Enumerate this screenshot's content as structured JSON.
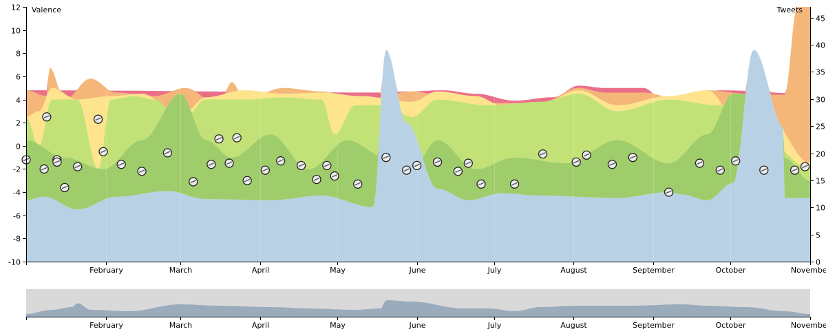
{
  "chart_data": {
    "type": "area",
    "left_axis_label": "Valence",
    "right_axis_label": "Tweets",
    "left_ticks": [
      12,
      10,
      8,
      6,
      4,
      2,
      0,
      -2,
      -4,
      -6,
      -8,
      -10
    ],
    "right_ticks": [
      "45",
      "40",
      "35",
      "30",
      "25",
      "20",
      "15",
      "10",
      "5",
      "0"
    ],
    "ylim_valence": [
      -10,
      12
    ],
    "ylim_tweets": [
      0,
      47
    ],
    "x_domain": [
      "2012-01-01",
      "2012-11-01"
    ],
    "months": [
      {
        "label": "February",
        "date": "2012-02-01"
      },
      {
        "label": "March",
        "date": "2012-03-01"
      },
      {
        "label": "April",
        "date": "2012-04-01"
      },
      {
        "label": "May",
        "date": "2012-05-01"
      },
      {
        "label": "June",
        "date": "2012-06-01"
      },
      {
        "label": "July",
        "date": "2012-07-01"
      },
      {
        "label": "August",
        "date": "2012-08-01"
      },
      {
        "label": "September",
        "date": "2012-09-01"
      },
      {
        "label": "October",
        "date": "2012-10-01"
      },
      {
        "label": "November",
        "date": "2012-11-01"
      }
    ],
    "bands": [
      {
        "color": "#b3cde3",
        "bottom": -10,
        "top": [
          [
            0,
            -4.7
          ],
          [
            7,
            -4.4
          ],
          [
            20,
            -5.5
          ],
          [
            35,
            -4.4
          ],
          [
            55,
            -3.9
          ],
          [
            70,
            -4.6
          ],
          [
            95,
            -4.7
          ],
          [
            115,
            -4.3
          ],
          [
            135,
            -5.3
          ],
          [
            140,
            8.3
          ],
          [
            148,
            2
          ],
          [
            160,
            -3.7
          ],
          [
            172,
            -4.7
          ],
          [
            185,
            -4.1
          ],
          [
            200,
            -4.3
          ],
          [
            230,
            -4.5
          ],
          [
            250,
            -4
          ],
          [
            255,
            -4.2
          ],
          [
            265,
            -4.7
          ],
          [
            275,
            -3.2
          ],
          [
            283,
            8.3
          ],
          [
            295,
            1.5
          ],
          [
            305,
            -4.5
          ],
          [
            295,
            -4.5
          ],
          [
            300,
            -4.5
          ]
        ]
      },
      {
        "color": "#98c95e",
        "bottom_from_prev": true,
        "top": [
          [
            0,
            0.5
          ],
          [
            15,
            -1
          ],
          [
            30,
            -2
          ],
          [
            45,
            0.5
          ],
          [
            60,
            4.5
          ],
          [
            70,
            0.5
          ],
          [
            80,
            -1
          ],
          [
            95,
            1
          ],
          [
            110,
            -2
          ],
          [
            125,
            0.5
          ],
          [
            140,
            -1
          ],
          [
            150,
            -2
          ],
          [
            160,
            0.5
          ],
          [
            175,
            -2
          ],
          [
            190,
            -1
          ],
          [
            210,
            -1.5
          ],
          [
            230,
            0.5
          ],
          [
            250,
            -1.5
          ],
          [
            265,
            1
          ],
          [
            275,
            4.5
          ],
          [
            285,
            4.5
          ],
          [
            295,
            -1
          ],
          [
            305,
            -3
          ]
        ]
      },
      {
        "color": "#bde06d",
        "bottom_from_prev": true,
        "top": [
          [
            0,
            2.5
          ],
          [
            5,
            0
          ],
          [
            10,
            4
          ],
          [
            20,
            4
          ],
          [
            28,
            -2
          ],
          [
            33,
            4
          ],
          [
            42,
            4.3
          ],
          [
            50,
            4
          ],
          [
            60,
            2
          ],
          [
            70,
            4
          ],
          [
            85,
            4
          ],
          [
            100,
            4.2
          ],
          [
            115,
            4
          ],
          [
            120,
            1
          ],
          [
            128,
            3.5
          ],
          [
            140,
            3.5
          ],
          [
            150,
            2.5
          ],
          [
            160,
            4
          ],
          [
            180,
            3.5
          ],
          [
            200,
            3.8
          ],
          [
            215,
            4.5
          ],
          [
            230,
            3
          ],
          [
            250,
            4
          ],
          [
            270,
            3.5
          ],
          [
            290,
            0
          ],
          [
            305,
            -2
          ]
        ]
      },
      {
        "color": "#fde283",
        "bottom_from_prev": true,
        "top": [
          [
            0,
            2.5
          ],
          [
            5,
            3
          ],
          [
            10,
            5
          ],
          [
            20,
            4
          ],
          [
            33,
            4.3
          ],
          [
            45,
            4.5
          ],
          [
            60,
            2.5
          ],
          [
            70,
            4.2
          ],
          [
            85,
            4.8
          ],
          [
            100,
            4.5
          ],
          [
            115,
            4.6
          ],
          [
            130,
            4.3
          ],
          [
            150,
            3.8
          ],
          [
            160,
            4.7
          ],
          [
            175,
            4.3
          ],
          [
            185,
            3.5
          ],
          [
            200,
            3.6
          ],
          [
            215,
            4.8
          ],
          [
            230,
            3.5
          ],
          [
            250,
            4.3
          ],
          [
            265,
            4.8
          ],
          [
            280,
            0.8
          ],
          [
            290,
            2
          ],
          [
            305,
            -1.5
          ]
        ]
      },
      {
        "color": "#f4b06f",
        "bottom_from_prev": true,
        "top": [
          [
            0,
            4.8
          ],
          [
            8,
            4.3
          ],
          [
            9,
            6.8
          ],
          [
            15,
            4
          ],
          [
            25,
            5.8
          ],
          [
            35,
            4.6
          ],
          [
            50,
            4.3
          ],
          [
            62,
            5
          ],
          [
            75,
            3.5
          ],
          [
            80,
            5.5
          ],
          [
            85,
            4
          ],
          [
            100,
            5
          ],
          [
            115,
            4.7
          ],
          [
            125,
            4.3
          ],
          [
            135,
            4.1
          ],
          [
            150,
            4.7
          ],
          [
            165,
            4.2
          ],
          [
            180,
            3.7
          ],
          [
            200,
            3.7
          ],
          [
            215,
            5
          ],
          [
            225,
            4.6
          ],
          [
            240,
            4.6
          ],
          [
            255,
            4
          ],
          [
            265,
            4.8
          ],
          [
            280,
            4.5
          ],
          [
            295,
            4.4
          ],
          [
            300,
            12
          ],
          [
            305,
            12
          ]
        ]
      },
      {
        "color": "#e8637e",
        "bottom_from_prev": true,
        "top": [
          [
            0,
            4.8
          ],
          [
            140,
            4.6
          ],
          [
            148,
            4.7
          ],
          [
            162,
            4.8
          ],
          [
            175,
            4.5
          ],
          [
            190,
            3.9
          ],
          [
            205,
            4.2
          ],
          [
            215,
            5.2
          ],
          [
            225,
            5
          ],
          [
            240,
            5
          ],
          [
            250,
            3.5
          ],
          [
            270,
            4.8
          ],
          [
            305,
            4.5
          ]
        ]
      }
    ],
    "bubbles": [
      [
        0,
        -1.2
      ],
      [
        7,
        -2
      ],
      [
        8,
        2.5
      ],
      [
        12,
        -1.2
      ],
      [
        12,
        -1.4
      ],
      [
        15,
        -3.6
      ],
      [
        20,
        -1.8
      ],
      [
        28,
        2.3
      ],
      [
        30,
        -0.5
      ],
      [
        37,
        -1.6
      ],
      [
        45,
        -2.2
      ],
      [
        55,
        -0.6
      ],
      [
        65,
        -3.1
      ],
      [
        72,
        -1.6
      ],
      [
        75,
        0.6
      ],
      [
        79,
        -1.5
      ],
      [
        82,
        0.7
      ],
      [
        86,
        -3.0
      ],
      [
        93,
        -2.1
      ],
      [
        99,
        -1.3
      ],
      [
        107,
        -1.7
      ],
      [
        113,
        -2.9
      ],
      [
        117,
        -1.7
      ],
      [
        120,
        -2.6
      ],
      [
        129,
        -3.3
      ],
      [
        140,
        -1.0
      ],
      [
        148,
        -2.1
      ],
      [
        152,
        -1.7
      ],
      [
        160,
        -1.4
      ],
      [
        168,
        -2.2
      ],
      [
        172,
        -1.5
      ],
      [
        177,
        -3.3
      ],
      [
        190,
        -3.3
      ],
      [
        201,
        -0.7
      ],
      [
        214,
        -1.4
      ],
      [
        218,
        -0.8
      ],
      [
        228,
        -1.6
      ],
      [
        236,
        -1.0
      ],
      [
        250,
        -4.0
      ],
      [
        262,
        -1.5
      ],
      [
        270,
        -2.1
      ],
      [
        276,
        -1.3
      ],
      [
        287,
        -2.1
      ],
      [
        299,
        -2.1
      ],
      [
        303,
        -1.8
      ]
    ],
    "overview": [
      [
        0,
        2
      ],
      [
        10,
        5
      ],
      [
        18,
        7
      ],
      [
        20,
        10
      ],
      [
        25,
        5
      ],
      [
        40,
        4
      ],
      [
        60,
        9
      ],
      [
        75,
        8
      ],
      [
        95,
        7
      ],
      [
        110,
        6
      ],
      [
        128,
        5
      ],
      [
        138,
        6
      ],
      [
        140,
        12
      ],
      [
        150,
        11
      ],
      [
        170,
        6
      ],
      [
        180,
        6
      ],
      [
        190,
        4
      ],
      [
        200,
        7
      ],
      [
        215,
        8
      ],
      [
        235,
        8
      ],
      [
        255,
        9
      ],
      [
        265,
        8
      ],
      [
        280,
        7
      ],
      [
        295,
        4
      ],
      [
        305,
        2
      ]
    ]
  }
}
